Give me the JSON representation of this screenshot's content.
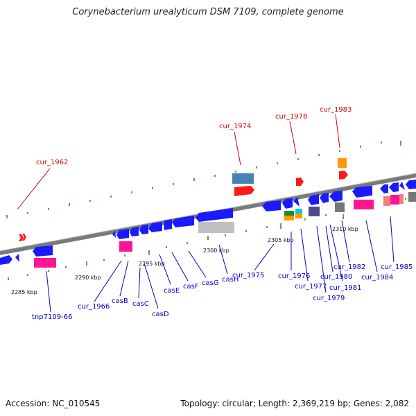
{
  "header": {
    "title": "Corynebacterium urealyticum DSM 7109, complete genome"
  },
  "footer": {
    "accession": "Accession: NC_010545",
    "topology": "Topology: circular; Length: 2,369,219 bp; Genes: 2,082"
  },
  "scale_labels": [
    "2285 kbp",
    "2290 kbp",
    "2295 kbp",
    "2300 kbp",
    "2305 kbp",
    "2310 kbp"
  ],
  "gene_labels": {
    "red": [
      "cur_1962",
      "cur_1974",
      "cur_1978",
      "cur_1983"
    ],
    "blue": [
      "tnp7109-66",
      "cur_1966",
      "casB",
      "casC",
      "casD",
      "casE",
      "casF",
      "casG",
      "casH",
      "cur_1975",
      "cur_1976",
      "cur_1977",
      "cur_1979",
      "cur_1980",
      "cur_1981",
      "cur_1982",
      "cur_1984",
      "cur_1985"
    ]
  },
  "colors": {
    "blue_label": "#0000cc",
    "red_label": "#cc0000",
    "tick": "#339933",
    "backbone": "#777777"
  }
}
